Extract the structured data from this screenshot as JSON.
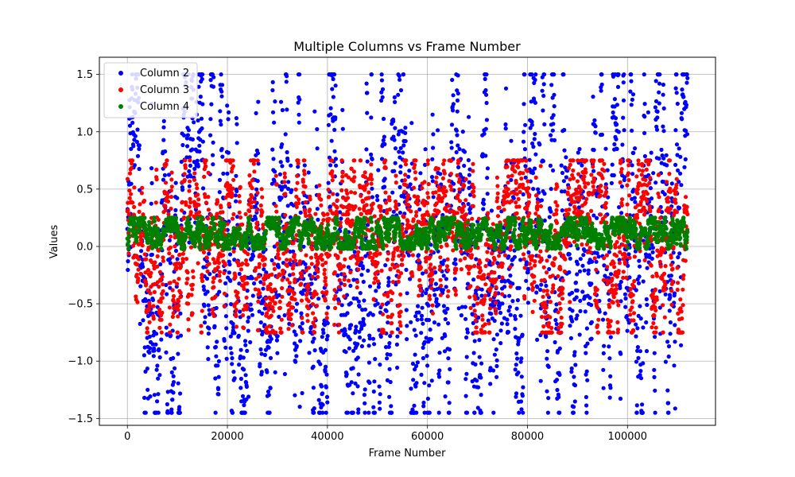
{
  "chart_data": {
    "type": "scatter",
    "title": "Multiple Columns vs Frame Number",
    "xlabel": "Frame Number",
    "ylabel": "Values",
    "xlim": [
      -5600,
      117600
    ],
    "ylim": [
      -1.56,
      1.65
    ],
    "xticks": [
      0,
      20000,
      40000,
      60000,
      80000,
      100000
    ],
    "xtick_labels": [
      "0",
      "20000",
      "40000",
      "60000",
      "80000",
      "100000"
    ],
    "yticks": [
      -1.5,
      -1.0,
      -0.5,
      0.0,
      0.5,
      1.0,
      1.5
    ],
    "ytick_labels": [
      "−1.5",
      "−1.0",
      "−0.5",
      "0.0",
      "0.5",
      "1.0",
      "1.5"
    ],
    "grid": true,
    "legend_position": "top-left",
    "x_range": [
      0,
      112000
    ],
    "series": [
      {
        "name": "Column 2",
        "color": "#0000ff",
        "envelope": {
          "min": -1.45,
          "max": 1.5
        }
      },
      {
        "name": "Column 3",
        "color": "#ff0000",
        "envelope": {
          "min": -0.75,
          "max": 0.75
        }
      },
      {
        "name": "Column 4",
        "color": "#008000",
        "envelope": {
          "min": -0.02,
          "max": 0.25
        }
      }
    ]
  }
}
